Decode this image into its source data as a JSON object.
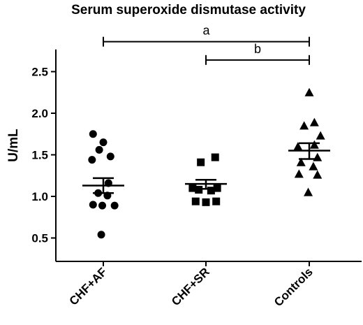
{
  "chart_data": {
    "type": "scatter",
    "title": "Serum superoxide dismutase activity",
    "xlabel": "",
    "ylabel": "U/mL",
    "ylim": [
      0.3,
      2.7
    ],
    "yticks": [
      0.5,
      1.0,
      1.5,
      2.0,
      2.5
    ],
    "ytick_labels": [
      "0.5",
      "1.0",
      "1.5",
      "2.0",
      "2.5"
    ],
    "categories": [
      "CHF+AF",
      "CHF+SR",
      "Controls"
    ],
    "groups": [
      {
        "name": "CHF+AF",
        "marker": "circle",
        "mean": 1.13,
        "sem": [
          1.04,
          1.22
        ],
        "points": [
          {
            "x_offset": -0.1,
            "y": 1.75
          },
          {
            "x_offset": 0.0,
            "y": 1.65
          },
          {
            "x_offset": -0.04,
            "y": 1.56
          },
          {
            "x_offset": 0.07,
            "y": 1.48
          },
          {
            "x_offset": -0.11,
            "y": 1.44
          },
          {
            "x_offset": 0.05,
            "y": 1.16
          },
          {
            "x_offset": -0.05,
            "y": 1.04
          },
          {
            "x_offset": 0.04,
            "y": 1.01
          },
          {
            "x_offset": -0.1,
            "y": 0.9
          },
          {
            "x_offset": -0.01,
            "y": 0.89
          },
          {
            "x_offset": 0.11,
            "y": 0.89
          },
          {
            "x_offset": -0.02,
            "y": 0.54
          }
        ]
      },
      {
        "name": "CHF+SR",
        "marker": "square",
        "mean": 1.15,
        "sem": [
          1.09,
          1.2
        ],
        "points": [
          {
            "x_offset": 0.09,
            "y": 1.47
          },
          {
            "x_offset": -0.05,
            "y": 1.41
          },
          {
            "x_offset": -0.13,
            "y": 1.1
          },
          {
            "x_offset": 0.11,
            "y": 1.1
          },
          {
            "x_offset": -0.07,
            "y": 1.08
          },
          {
            "x_offset": 0.05,
            "y": 1.07
          },
          {
            "x_offset": -0.1,
            "y": 0.94
          },
          {
            "x_offset": 0.0,
            "y": 0.93
          },
          {
            "x_offset": 0.1,
            "y": 0.94
          }
        ]
      },
      {
        "name": "Controls",
        "marker": "triangle",
        "mean": 1.55,
        "sem": [
          1.45,
          1.64
        ],
        "points": [
          {
            "x_offset": 0.0,
            "y": 2.25
          },
          {
            "x_offset": 0.05,
            "y": 1.89
          },
          {
            "x_offset": -0.05,
            "y": 1.85
          },
          {
            "x_offset": 0.11,
            "y": 1.73
          },
          {
            "x_offset": 0.05,
            "y": 1.62
          },
          {
            "x_offset": -0.11,
            "y": 1.6
          },
          {
            "x_offset": 0.08,
            "y": 1.47
          },
          {
            "x_offset": -0.08,
            "y": 1.41
          },
          {
            "x_offset": 0.04,
            "y": 1.36
          },
          {
            "x_offset": -0.1,
            "y": 1.27
          },
          {
            "x_offset": 0.08,
            "y": 1.26
          },
          {
            "x_offset": -0.01,
            "y": 1.05
          }
        ]
      }
    ],
    "comparisons": [
      {
        "label": "a",
        "from": "CHF+AF",
        "to": "Controls",
        "y": 2.86
      },
      {
        "label": "b",
        "from": "CHF+SR",
        "to": "Controls",
        "y": 2.64
      }
    ],
    "grid": false,
    "legend": "none"
  }
}
